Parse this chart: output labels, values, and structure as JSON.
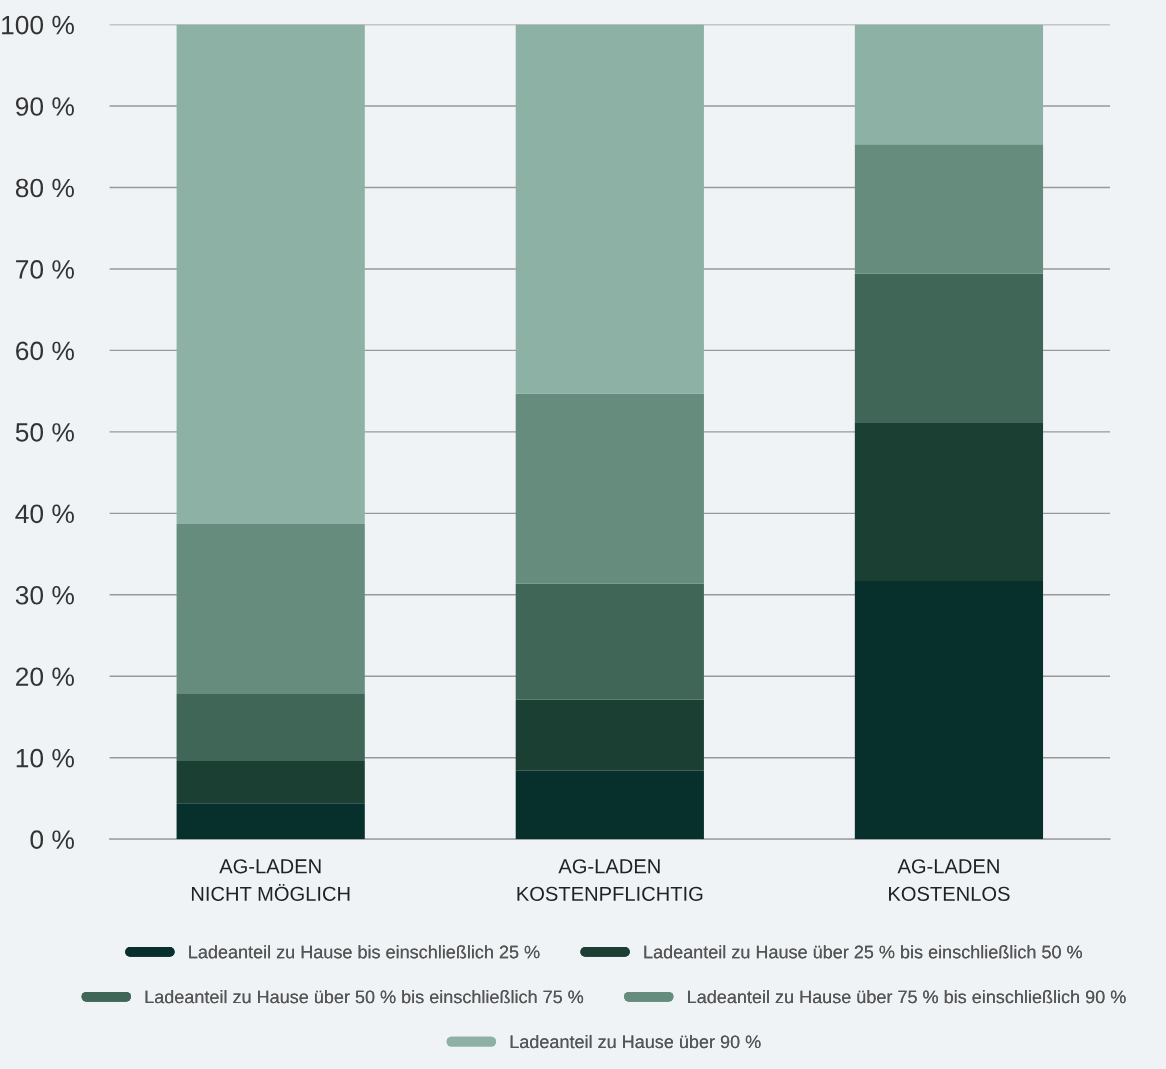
{
  "chart_data": {
    "type": "bar",
    "stacked": true,
    "categories": [
      "AG-LADEN\nNICHT MÖGLICH",
      "AG-LADEN\nKOSTENPFLICHTIG",
      "AG-LADEN\nKOSTENLOS"
    ],
    "series": [
      {
        "name": "Ladeanteil zu Hause bis einschließlich 25 %",
        "color": "#07302c",
        "values": [
          4.4,
          8.4,
          31.7
        ]
      },
      {
        "name": "Ladeanteil zu Hause über 25 % bis einschließlich 50 %",
        "color": "#1c3f33",
        "values": [
          5.2,
          8.7,
          19.4
        ]
      },
      {
        "name": "Ladeanteil zu Hause über 50 % bis einschließlich 75 %",
        "color": "#3f6657",
        "values": [
          8.3,
          14.3,
          18.3
        ]
      },
      {
        "name": "Ladeanteil zu Hause über 75 % bis einschließlich 90 %",
        "color": "#668c7e",
        "values": [
          20.8,
          23.3,
          15.9
        ]
      },
      {
        "name": "Ladeanteil zu Hause über 90 %",
        "color": "#8db2a5",
        "values": [
          61.3,
          45.3,
          14.7
        ]
      }
    ],
    "ylim": [
      0,
      100
    ],
    "yticks": [
      {
        "value": 0,
        "label": "0 %"
      },
      {
        "value": 10,
        "label": "10 %"
      },
      {
        "value": 20,
        "label": "20 %"
      },
      {
        "value": 30,
        "label": "30 %"
      },
      {
        "value": 40,
        "label": "40 %"
      },
      {
        "value": 50,
        "label": "50 %"
      },
      {
        "value": 60,
        "label": "60 %"
      },
      {
        "value": 70,
        "label": "70 %"
      },
      {
        "value": 80,
        "label": "80 %"
      },
      {
        "value": 90,
        "label": "90 %"
      },
      {
        "value": 100,
        "label": "100 %"
      }
    ],
    "grid": "y",
    "legend": "bottom"
  }
}
